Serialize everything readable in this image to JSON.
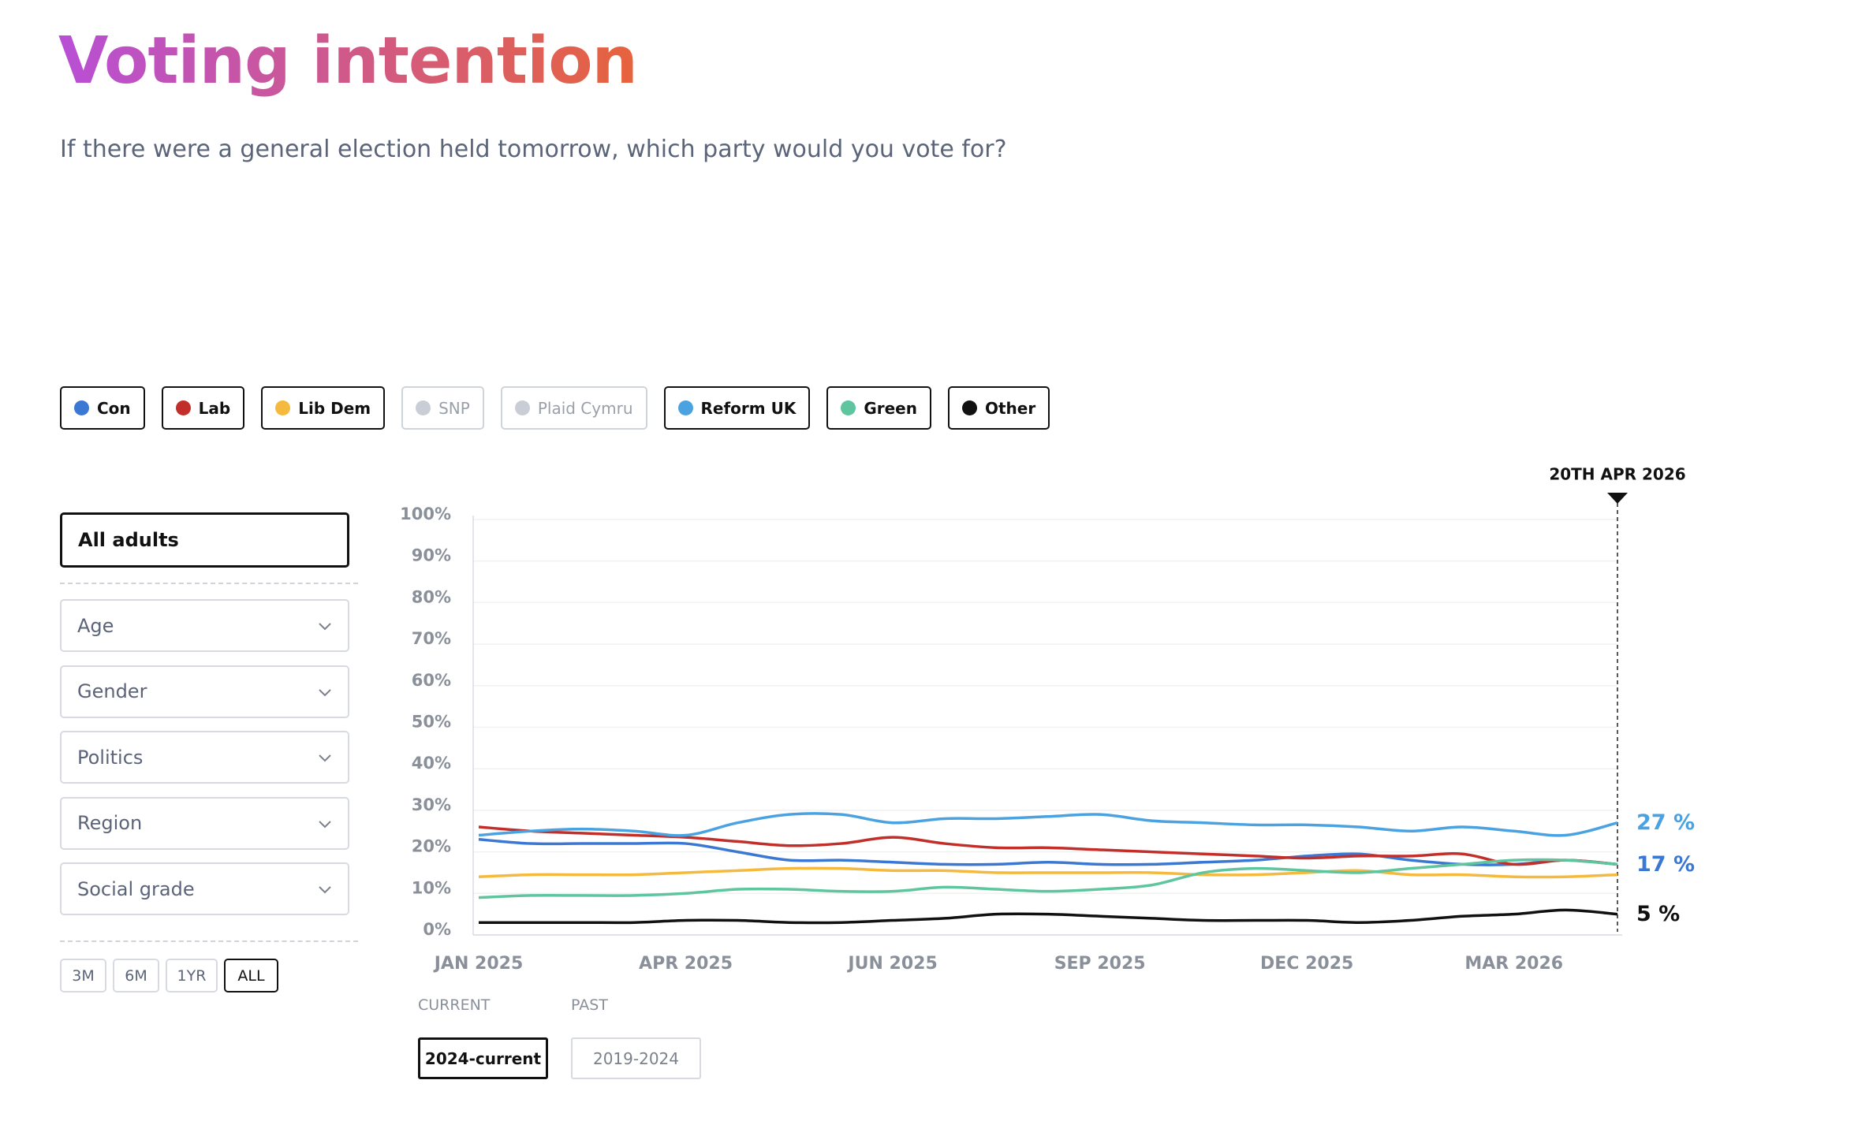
{
  "header": {
    "title": "Voting intention",
    "subtitle": "If there were a general election held tomorrow, which party would you vote for?"
  },
  "filters": {
    "audience": "All adults",
    "dropdowns": [
      "Age",
      "Gender",
      "Politics",
      "Region",
      "Social grade"
    ],
    "periods": [
      "3M",
      "6M",
      "1YR",
      "ALL"
    ],
    "active_period": 3
  },
  "chart_data": {
    "type": "line",
    "categories": [
      "JAN 2025",
      null,
      null,
      null,
      "APR 2025",
      null,
      null,
      null,
      "JUN 2025",
      null,
      null,
      null,
      "SEP 2025",
      null,
      null,
      null,
      "DEC 2025",
      null,
      null,
      null,
      "MAR 2026",
      null,
      null
    ],
    "ylim": [
      0,
      100
    ],
    "yticks": [
      {
        "value": 0,
        "label": "0%"
      },
      {
        "value": 10,
        "label": "10%"
      },
      {
        "value": 20,
        "label": "20%"
      },
      {
        "value": 30,
        "label": "30%"
      },
      {
        "value": 40,
        "label": "40%"
      },
      {
        "value": 50,
        "label": "50%"
      },
      {
        "value": 60,
        "label": "60%"
      },
      {
        "value": 70,
        "label": "70%"
      },
      {
        "value": 80,
        "label": "80%"
      },
      {
        "value": 90,
        "label": "90%"
      },
      {
        "value": 100,
        "label": "100%"
      }
    ],
    "grid": true,
    "marker_label": "20TH APR 2026",
    "series": [
      {
        "name": "Con",
        "color": "#3b78d4",
        "values": [
          23,
          22,
          22,
          22,
          22,
          20,
          18,
          18,
          17.5,
          17,
          17,
          17.5,
          17,
          17,
          17.5,
          18,
          19,
          19.5,
          18,
          17,
          17,
          18,
          17
        ],
        "value_labels": [
          null,
          null,
          null,
          null,
          null,
          null,
          null,
          null,
          null,
          null,
          null,
          null,
          null,
          null,
          null,
          null,
          null,
          null,
          null,
          null,
          null,
          null,
          "17 %"
        ]
      },
      {
        "name": "Lab",
        "color": "#c22f2b",
        "values": [
          26,
          25,
          24.5,
          24,
          23.5,
          22.5,
          21.5,
          22,
          23.5,
          22,
          21,
          21,
          20.5,
          20,
          19.5,
          19,
          18.5,
          19,
          19,
          19.5,
          17,
          18,
          17
        ]
      },
      {
        "name": "Lib Dem",
        "color": "#f5b93e",
        "values": [
          14,
          14.5,
          14.5,
          14.5,
          15,
          15.5,
          16,
          16,
          15.5,
          15.5,
          15,
          15,
          15,
          15,
          14.5,
          14.5,
          15,
          15.5,
          14.5,
          14.5,
          14,
          14,
          14.5
        ]
      },
      {
        "name": "Reform UK",
        "color": "#4aa2e0",
        "values": [
          24,
          25,
          25.5,
          25,
          24,
          27,
          29,
          29,
          27,
          28,
          28,
          28.5,
          29,
          27.5,
          27,
          26.5,
          26.5,
          26,
          25,
          26,
          25,
          24,
          27
        ],
        "value_labels": [
          null,
          null,
          null,
          null,
          null,
          null,
          null,
          null,
          null,
          null,
          null,
          null,
          null,
          null,
          null,
          null,
          null,
          null,
          null,
          null,
          null,
          null,
          "27 %"
        ]
      },
      {
        "name": "Green",
        "color": "#5ec59e",
        "values": [
          9,
          9.5,
          9.5,
          9.5,
          10,
          11,
          11,
          10.5,
          10.5,
          11.5,
          11,
          10.5,
          11,
          12,
          15,
          16,
          15.5,
          15,
          16,
          17,
          18,
          18,
          17
        ]
      },
      {
        "name": "Other",
        "color": "#111111",
        "values": [
          3,
          3,
          3,
          3,
          3.5,
          3.5,
          3,
          3,
          3.5,
          4,
          5,
          5,
          4.5,
          4,
          3.5,
          3.5,
          3.5,
          3,
          3.5,
          4.5,
          5,
          6,
          5
        ],
        "value_labels": [
          null,
          null,
          null,
          null,
          null,
          null,
          null,
          null,
          null,
          null,
          null,
          null,
          null,
          null,
          null,
          null,
          null,
          null,
          null,
          null,
          null,
          null,
          "5 %"
        ]
      }
    ],
    "hidden_series": [
      {
        "name": "SNP",
        "color": "#c9ced6"
      },
      {
        "name": "Plaid Cymru",
        "color": "#c9ced6"
      }
    ]
  },
  "dataset": {
    "current_heading": "CURRENT",
    "past_heading": "PAST",
    "current": "2024-current",
    "past": "2019-2024"
  }
}
